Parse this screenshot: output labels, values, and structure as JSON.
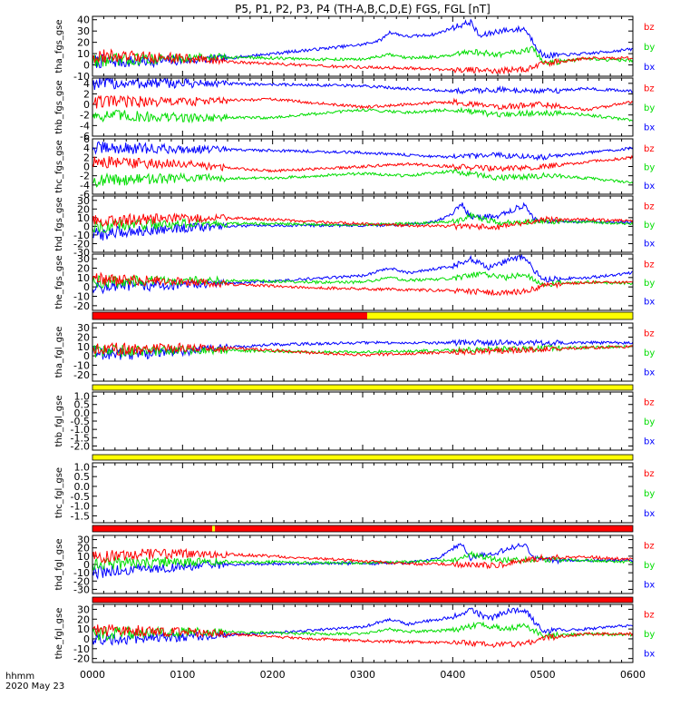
{
  "title": "P5, P1, P2, P3, P4 (TH-A,B,C,D,E) FGS, FGL [nT]",
  "time_axis": {
    "label_unit": "hhmm",
    "label_date": "2020 May 23",
    "ticks": [
      "0000",
      "0100",
      "0200",
      "0300",
      "0400",
      "0500",
      "0600"
    ],
    "range_hours": [
      0,
      6
    ]
  },
  "colors": {
    "bx": "#0000ff",
    "by": "#00dd00",
    "bz": "#ff0000",
    "flag_bad": "#ff0000",
    "flag_good": "#ffff00"
  },
  "flag_bars": [
    {
      "segments": [
        {
          "from": 0,
          "to": 3.05,
          "color": "#ff0000"
        },
        {
          "from": 3.05,
          "to": 6,
          "color": "#ffff00"
        }
      ]
    },
    {
      "segments": [
        {
          "from": 0,
          "to": 6,
          "color": "#ffff00"
        }
      ]
    },
    {
      "segments": [
        {
          "from": 0,
          "to": 6,
          "color": "#ffff00"
        }
      ]
    },
    {
      "segments": [
        {
          "from": 0,
          "to": 1.33,
          "color": "#ff0000"
        },
        {
          "from": 1.33,
          "to": 1.36,
          "color": "#ffff00"
        },
        {
          "from": 1.36,
          "to": 6,
          "color": "#ff0000"
        }
      ]
    },
    {
      "segments": [
        {
          "from": 0,
          "to": 6,
          "color": "#ff0000"
        }
      ]
    }
  ],
  "chart_data": [
    {
      "type": "line",
      "ylabel": "tha_fgs_gse",
      "ylim": [
        -10,
        43
      ],
      "ytick_labels": [
        "-10",
        "0",
        "10",
        "20",
        "30",
        "40"
      ],
      "series": [
        {
          "name": "bx",
          "x": [
            0,
            0.5,
            1,
            1.5,
            2,
            2.5,
            3,
            3.2,
            3.3,
            3.5,
            3.8,
            4.0,
            4.2,
            4.3,
            4.5,
            4.8,
            4.9,
            5.0,
            5.5,
            6
          ],
          "y": [
            3,
            3,
            4,
            6,
            10,
            14,
            18,
            22,
            29,
            25,
            27,
            33,
            38,
            25,
            30,
            32,
            20,
            8,
            10,
            14
          ]
        },
        {
          "name": "by",
          "x": [
            0,
            0.5,
            1,
            1.5,
            2,
            2.5,
            3,
            3.3,
            3.5,
            4,
            4.2,
            4.5,
            4.9,
            5.0,
            5.5,
            6
          ],
          "y": [
            4,
            5,
            6,
            7,
            6,
            5,
            5,
            9,
            6,
            8,
            12,
            9,
            14,
            2,
            5,
            4
          ]
        },
        {
          "name": "bz",
          "x": [
            0,
            0.5,
            1,
            1.5,
            2,
            2.5,
            3,
            3.5,
            4,
            4.5,
            4.8,
            5.0,
            5.5,
            6
          ],
          "y": [
            8,
            7,
            6,
            3,
            1,
            -1,
            -2,
            -3,
            -4,
            -5,
            -4,
            1,
            6,
            6
          ]
        }
      ]
    },
    {
      "type": "line",
      "ylabel": "thb_fgs_gse",
      "ylim": [
        -6,
        5
      ],
      "ytick_labels": [
        "-6",
        "-4",
        "-2",
        "0",
        "2",
        "4"
      ],
      "series": [
        {
          "name": "bx",
          "x": [
            0,
            1,
            2,
            3,
            3.5,
            4,
            4.5,
            5,
            5.5,
            6
          ],
          "y": [
            4,
            4,
            3.8,
            3.5,
            3,
            2.5,
            2.8,
            2.5,
            3,
            2.5
          ]
        },
        {
          "name": "by",
          "x": [
            0,
            1,
            2,
            3,
            3.5,
            4,
            4.5,
            5,
            5.5,
            6
          ],
          "y": [
            -2,
            -2.5,
            -2.5,
            -1,
            -1.5,
            -1,
            -2,
            -1.5,
            -2,
            -3
          ]
        },
        {
          "name": "bz",
          "x": [
            0,
            1,
            2,
            3,
            3.5,
            4,
            4.5,
            5,
            5.5,
            6
          ],
          "y": [
            0.5,
            0.5,
            1,
            -0.5,
            0,
            0.5,
            -0.5,
            0,
            -1,
            0.5
          ]
        }
      ]
    },
    {
      "type": "line",
      "ylabel": "thc_fgs_gse",
      "ylim": [
        -6,
        6
      ],
      "ytick_labels": [
        "-6",
        "-4",
        "-2",
        "0",
        "2",
        "4",
        "6"
      ],
      "series": [
        {
          "name": "bx",
          "x": [
            0,
            1,
            2,
            3,
            3.5,
            4,
            4.5,
            5,
            5.5,
            6
          ],
          "y": [
            4,
            3.8,
            3.5,
            3,
            2.5,
            2,
            2.5,
            2,
            3,
            4
          ]
        },
        {
          "name": "by",
          "x": [
            0,
            1,
            2,
            3,
            3.5,
            4,
            4.5,
            5,
            5.5,
            6
          ],
          "y": [
            -3,
            -2.5,
            -2.5,
            -1.5,
            -2,
            -1,
            -2.5,
            -2,
            -2.5,
            -3.5
          ]
        },
        {
          "name": "bz",
          "x": [
            0,
            1,
            2,
            3,
            3.5,
            4,
            4.5,
            5,
            5.5,
            6
          ],
          "y": [
            1,
            0.5,
            -1,
            0,
            0.5,
            0,
            -0.5,
            0,
            1,
            2
          ]
        }
      ]
    },
    {
      "type": "line",
      "ylabel": "thd_fgs_gse",
      "ylim": [
        -30,
        35
      ],
      "ytick_labels": [
        "-30",
        "-20",
        "-10",
        "0",
        "10",
        "20",
        "30"
      ],
      "series": [
        {
          "name": "bx",
          "x": [
            0,
            0.5,
            1,
            1.5,
            2,
            2.5,
            3,
            3.5,
            3.8,
            4.0,
            4.1,
            4.2,
            4.5,
            4.8,
            4.9,
            5.0,
            5.5,
            6
          ],
          "y": [
            -10,
            -5,
            -2,
            0,
            1,
            1,
            1,
            2,
            5,
            15,
            26,
            10,
            12,
            25,
            10,
            5,
            5,
            5
          ]
        },
        {
          "name": "by",
          "x": [
            0,
            0.5,
            1,
            1.5,
            2,
            2.5,
            3,
            3.5,
            4,
            4.2,
            4.5,
            5,
            5.5,
            6
          ],
          "y": [
            0,
            2,
            3,
            3,
            3,
            2,
            2,
            3,
            5,
            12,
            4,
            6,
            5,
            3
          ]
        },
        {
          "name": "bz",
          "x": [
            0,
            0.5,
            1,
            1.5,
            2,
            2.5,
            3,
            3.5,
            4,
            4.5,
            5,
            5.5,
            6
          ],
          "y": [
            5,
            8,
            9,
            10,
            8,
            5,
            3,
            1,
            0,
            -1,
            8,
            8,
            6
          ]
        }
      ]
    },
    {
      "type": "line",
      "ylabel": "the_fgs_gse",
      "ylim": [
        -25,
        35
      ],
      "ytick_labels": [
        "-20",
        "-10",
        "0",
        "10",
        "20",
        "30"
      ],
      "series": [
        {
          "name": "bx",
          "x": [
            0,
            0.5,
            1,
            1.5,
            2,
            2.5,
            3,
            3.3,
            3.5,
            4,
            4.2,
            4.4,
            4.6,
            4.8,
            4.9,
            5.0,
            5.5,
            6
          ],
          "y": [
            0,
            1,
            2,
            4,
            6,
            9,
            12,
            20,
            15,
            22,
            30,
            20,
            28,
            32,
            18,
            8,
            10,
            15
          ]
        },
        {
          "name": "by",
          "x": [
            0,
            0.5,
            1,
            1.5,
            2,
            2.5,
            3,
            3.3,
            3.5,
            4,
            4.3,
            4.6,
            4.8,
            5.0,
            5.5,
            6
          ],
          "y": [
            5,
            6,
            7,
            7,
            6,
            5,
            5,
            10,
            7,
            9,
            14,
            10,
            14,
            3,
            5,
            4
          ]
        },
        {
          "name": "bz",
          "x": [
            0,
            0.5,
            1,
            1.5,
            2,
            2.5,
            3,
            3.5,
            4,
            4.5,
            4.8,
            5,
            5.5,
            6
          ],
          "y": [
            8,
            7,
            6,
            3,
            1,
            -1,
            -2,
            -3,
            -4,
            -6,
            -5,
            1,
            5,
            5
          ]
        }
      ]
    },
    {
      "type": "line",
      "ylabel": "tha_fgl_gse",
      "ylim": [
        -27,
        35
      ],
      "ytick_labels": [
        "-20",
        "-10",
        "0",
        "10",
        "20",
        "30"
      ],
      "series": [
        {
          "name": "bx",
          "x": [
            0,
            0.5,
            1,
            1.5,
            2,
            2.5,
            3,
            3.05,
            6
          ],
          "y": [
            3,
            2,
            5,
            9,
            12,
            13,
            14,
            14,
            14
          ]
        },
        {
          "name": "by",
          "x": [
            0,
            0.5,
            1,
            1.5,
            2,
            2.5,
            3,
            6
          ],
          "y": [
            5,
            5,
            6,
            6,
            5,
            4,
            4,
            10
          ]
        },
        {
          "name": "bz",
          "x": [
            0,
            0.5,
            1,
            1.5,
            2,
            2.5,
            3,
            6
          ],
          "y": [
            8,
            7,
            9,
            8,
            6,
            3,
            1,
            10
          ]
        }
      ]
    },
    {
      "type": "line",
      "ylabel": "thb_fgl_gse",
      "ylim": [
        -2.25,
        1.25
      ],
      "ytick_labels": [
        "-2.0",
        "-1.5",
        "-1.0",
        "-0.5",
        "0.0",
        "0.5",
        "1.0"
      ],
      "series": [
        {
          "name": "bx",
          "x": [],
          "y": []
        },
        {
          "name": "by",
          "x": [],
          "y": []
        },
        {
          "name": "bz",
          "x": [],
          "y": []
        }
      ]
    },
    {
      "type": "line",
      "ylabel": "thc_fgl_gse",
      "ylim": [
        -1.85,
        1.2
      ],
      "ytick_labels": [
        "-1.5",
        "-1.0",
        "-0.5",
        "0.0",
        "0.5",
        "1.0"
      ],
      "series": [
        {
          "name": "bx",
          "x": [],
          "y": []
        },
        {
          "name": "by",
          "x": [],
          "y": []
        },
        {
          "name": "bz",
          "x": [],
          "y": []
        }
      ]
    },
    {
      "type": "line",
      "ylabel": "thd_fgl_gse",
      "ylim": [
        -35,
        35
      ],
      "ytick_labels": [
        "-30",
        "-20",
        "-10",
        "0",
        "10",
        "20",
        "30"
      ],
      "series": [
        {
          "name": "bx",
          "x": [
            0,
            0.5,
            1,
            1.5,
            2,
            2.5,
            3,
            3.5,
            3.8,
            4.0,
            4.1,
            4.2,
            4.5,
            4.8,
            4.9,
            5.0,
            5.5,
            6
          ],
          "y": [
            -10,
            -6,
            -3,
            0,
            1,
            1,
            1,
            2,
            6,
            18,
            27,
            8,
            14,
            25,
            8,
            5,
            5,
            5
          ]
        },
        {
          "name": "by",
          "x": [
            0,
            0.5,
            1,
            1.5,
            2,
            2.5,
            3,
            3.5,
            4,
            4.2,
            4.5,
            5,
            5.5,
            6
          ],
          "y": [
            0,
            2,
            3,
            3,
            3,
            2,
            2,
            3,
            5,
            12,
            5,
            6,
            5,
            3
          ]
        },
        {
          "name": "bz",
          "x": [
            0,
            0.5,
            1,
            1.5,
            2,
            2.5,
            3,
            3.5,
            4,
            4.5,
            5,
            5.5,
            6
          ],
          "y": [
            8,
            12,
            13,
            12,
            10,
            7,
            4,
            1,
            0,
            -1,
            8,
            9,
            6
          ]
        }
      ]
    },
    {
      "type": "line",
      "ylabel": "the_fgl_gse",
      "ylim": [
        -24,
        35
      ],
      "ytick_labels": [
        "-20",
        "-10",
        "0",
        "10",
        "20",
        "30"
      ],
      "series": [
        {
          "name": "bx",
          "x": [
            0,
            0.5,
            1,
            1.5,
            2,
            2.5,
            3,
            3.3,
            3.5,
            4,
            4.2,
            4.4,
            4.6,
            4.8,
            4.9,
            5.0,
            5.5,
            6
          ],
          "y": [
            0,
            1,
            2,
            4,
            6,
            9,
            12,
            20,
            15,
            22,
            30,
            20,
            28,
            30,
            18,
            8,
            10,
            14
          ]
        },
        {
          "name": "by",
          "x": [
            0,
            0.5,
            1,
            1.5,
            2,
            2.5,
            3,
            3.3,
            3.5,
            4,
            4.3,
            4.6,
            4.8,
            5.0,
            5.5,
            6
          ],
          "y": [
            5,
            6,
            7,
            7,
            6,
            5,
            5,
            10,
            7,
            9,
            14,
            10,
            14,
            3,
            5,
            4
          ]
        },
        {
          "name": "bz",
          "x": [
            0,
            0.5,
            1,
            1.5,
            2,
            2.5,
            3,
            3.5,
            4,
            4.5,
            4.8,
            5,
            5.5,
            6
          ],
          "y": [
            8,
            8,
            7,
            5,
            2,
            0,
            -2,
            -3,
            -4,
            -6,
            -5,
            1,
            5,
            5
          ]
        }
      ]
    }
  ]
}
